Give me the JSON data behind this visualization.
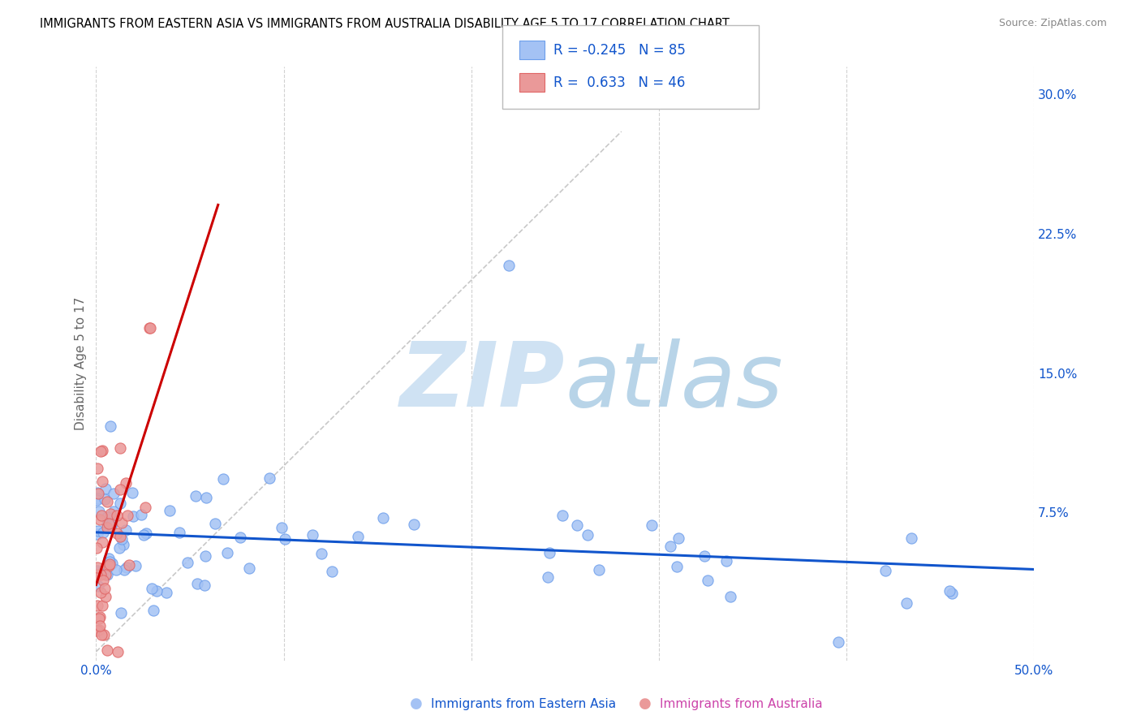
{
  "title": "IMMIGRANTS FROM EASTERN ASIA VS IMMIGRANTS FROM AUSTRALIA DISABILITY AGE 5 TO 17 CORRELATION CHART",
  "source": "Source: ZipAtlas.com",
  "xlabel_blue": "Immigrants from Eastern Asia",
  "xlabel_pink": "Immigrants from Australia",
  "ylabel": "Disability Age 5 to 17",
  "xlim": [
    0.0,
    0.5
  ],
  "ylim": [
    -0.005,
    0.315
  ],
  "xticks": [
    0.0,
    0.1,
    0.2,
    0.3,
    0.4,
    0.5
  ],
  "yticks_right": [
    0.0,
    0.075,
    0.15,
    0.225,
    0.3
  ],
  "ytick_labels_right": [
    "",
    "7.5%",
    "15.0%",
    "22.5%",
    "30.0%"
  ],
  "xtick_labels": [
    "0.0%",
    "",
    "",
    "",
    "",
    "50.0%"
  ],
  "R_blue": -0.245,
  "N_blue": 85,
  "R_pink": 0.633,
  "N_pink": 46,
  "blue_scatter_color": "#a4c2f4",
  "pink_scatter_color": "#ea9999",
  "blue_edge_color": "#6d9eeb",
  "pink_edge_color": "#e06666",
  "blue_line_color": "#1155cc",
  "pink_line_color": "#cc0000",
  "background_color": "#ffffff",
  "grid_color": "#cccccc",
  "title_color": "#000000",
  "axis_label_color": "#666666",
  "tick_label_color": "#1155cc",
  "watermark_color": "#cfe2f3",
  "watermark_text": "ZIPatlas",
  "diag_color": "#bbbbbb",
  "seed": 12
}
